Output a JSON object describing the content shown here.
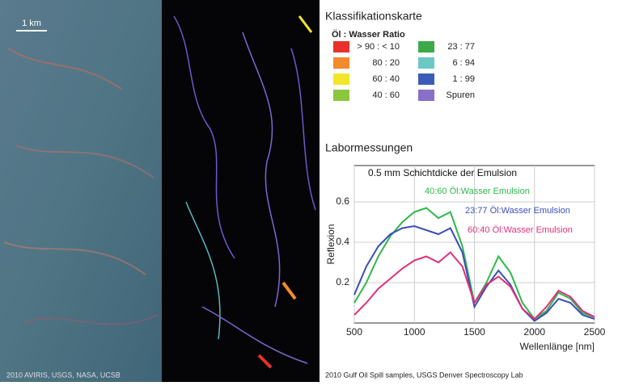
{
  "map": {
    "scale_label": "1 km",
    "credit": "2010 AVIRIS, USGS, NASA, UCSB"
  },
  "legend": {
    "title": "Klassifikationskarte",
    "subtitle": "Öl : Wasser Ratio",
    "items": [
      {
        "label": "> 90 : < 10",
        "color": "#e8312a"
      },
      {
        "label": "80 : 20",
        "color": "#f28a2e"
      },
      {
        "label": "60 : 40",
        "color": "#f3e52a"
      },
      {
        "label": "40 : 60",
        "color": "#8cc63f"
      },
      {
        "label": "23 : 77",
        "color": "#3aaa48"
      },
      {
        "label": "6 : 94",
        "color": "#6cc8c4"
      },
      {
        "label": "1 : 99",
        "color": "#3a5cb8"
      },
      {
        "label": "Spuren",
        "color": "#8a6fc8"
      }
    ]
  },
  "chart_data": {
    "type": "line",
    "title": "Labormessungen",
    "annotation": "0.5 mm Schichtdicke der Emulsion",
    "xlabel": "Wellenlänge [nm]",
    "ylabel": "Reflexion",
    "x": [
      500,
      600,
      700,
      800,
      900,
      1000,
      1100,
      1200,
      1300,
      1400,
      1500,
      1600,
      1700,
      1800,
      1900,
      2000,
      2100,
      2200,
      2300,
      2400,
      2500
    ],
    "series": [
      {
        "name": "40:60  Öl:Wasser Emulsion",
        "color": "#2fb84a",
        "values": [
          0.1,
          0.2,
          0.33,
          0.43,
          0.5,
          0.55,
          0.57,
          0.52,
          0.55,
          0.38,
          0.1,
          0.2,
          0.33,
          0.25,
          0.1,
          0.02,
          0.06,
          0.15,
          0.12,
          0.05,
          0.03
        ]
      },
      {
        "name": "23:77  Öl:Wasser Emulsion",
        "color": "#3a4fb8",
        "values": [
          0.14,
          0.28,
          0.38,
          0.44,
          0.47,
          0.48,
          0.46,
          0.44,
          0.47,
          0.35,
          0.08,
          0.18,
          0.26,
          0.19,
          0.07,
          0.01,
          0.05,
          0.12,
          0.1,
          0.04,
          0.02
        ]
      },
      {
        "name": "60:40  Öl:Wasser Emulsion",
        "color": "#e0307a",
        "values": [
          0.04,
          0.1,
          0.17,
          0.22,
          0.27,
          0.31,
          0.33,
          0.3,
          0.35,
          0.28,
          0.1,
          0.19,
          0.23,
          0.18,
          0.07,
          0.02,
          0.08,
          0.16,
          0.13,
          0.06,
          0.03
        ]
      }
    ],
    "xlim": [
      500,
      2500
    ],
    "xticks": [
      500,
      1000,
      1500,
      2000,
      2500
    ],
    "ylim": [
      0,
      0.78
    ],
    "yticks": [
      0.2,
      0.4,
      0.6
    ],
    "grid": true
  },
  "footer": "2010 Gulf Oil Spill samples, USGS Denver Spectroscopy Lab"
}
